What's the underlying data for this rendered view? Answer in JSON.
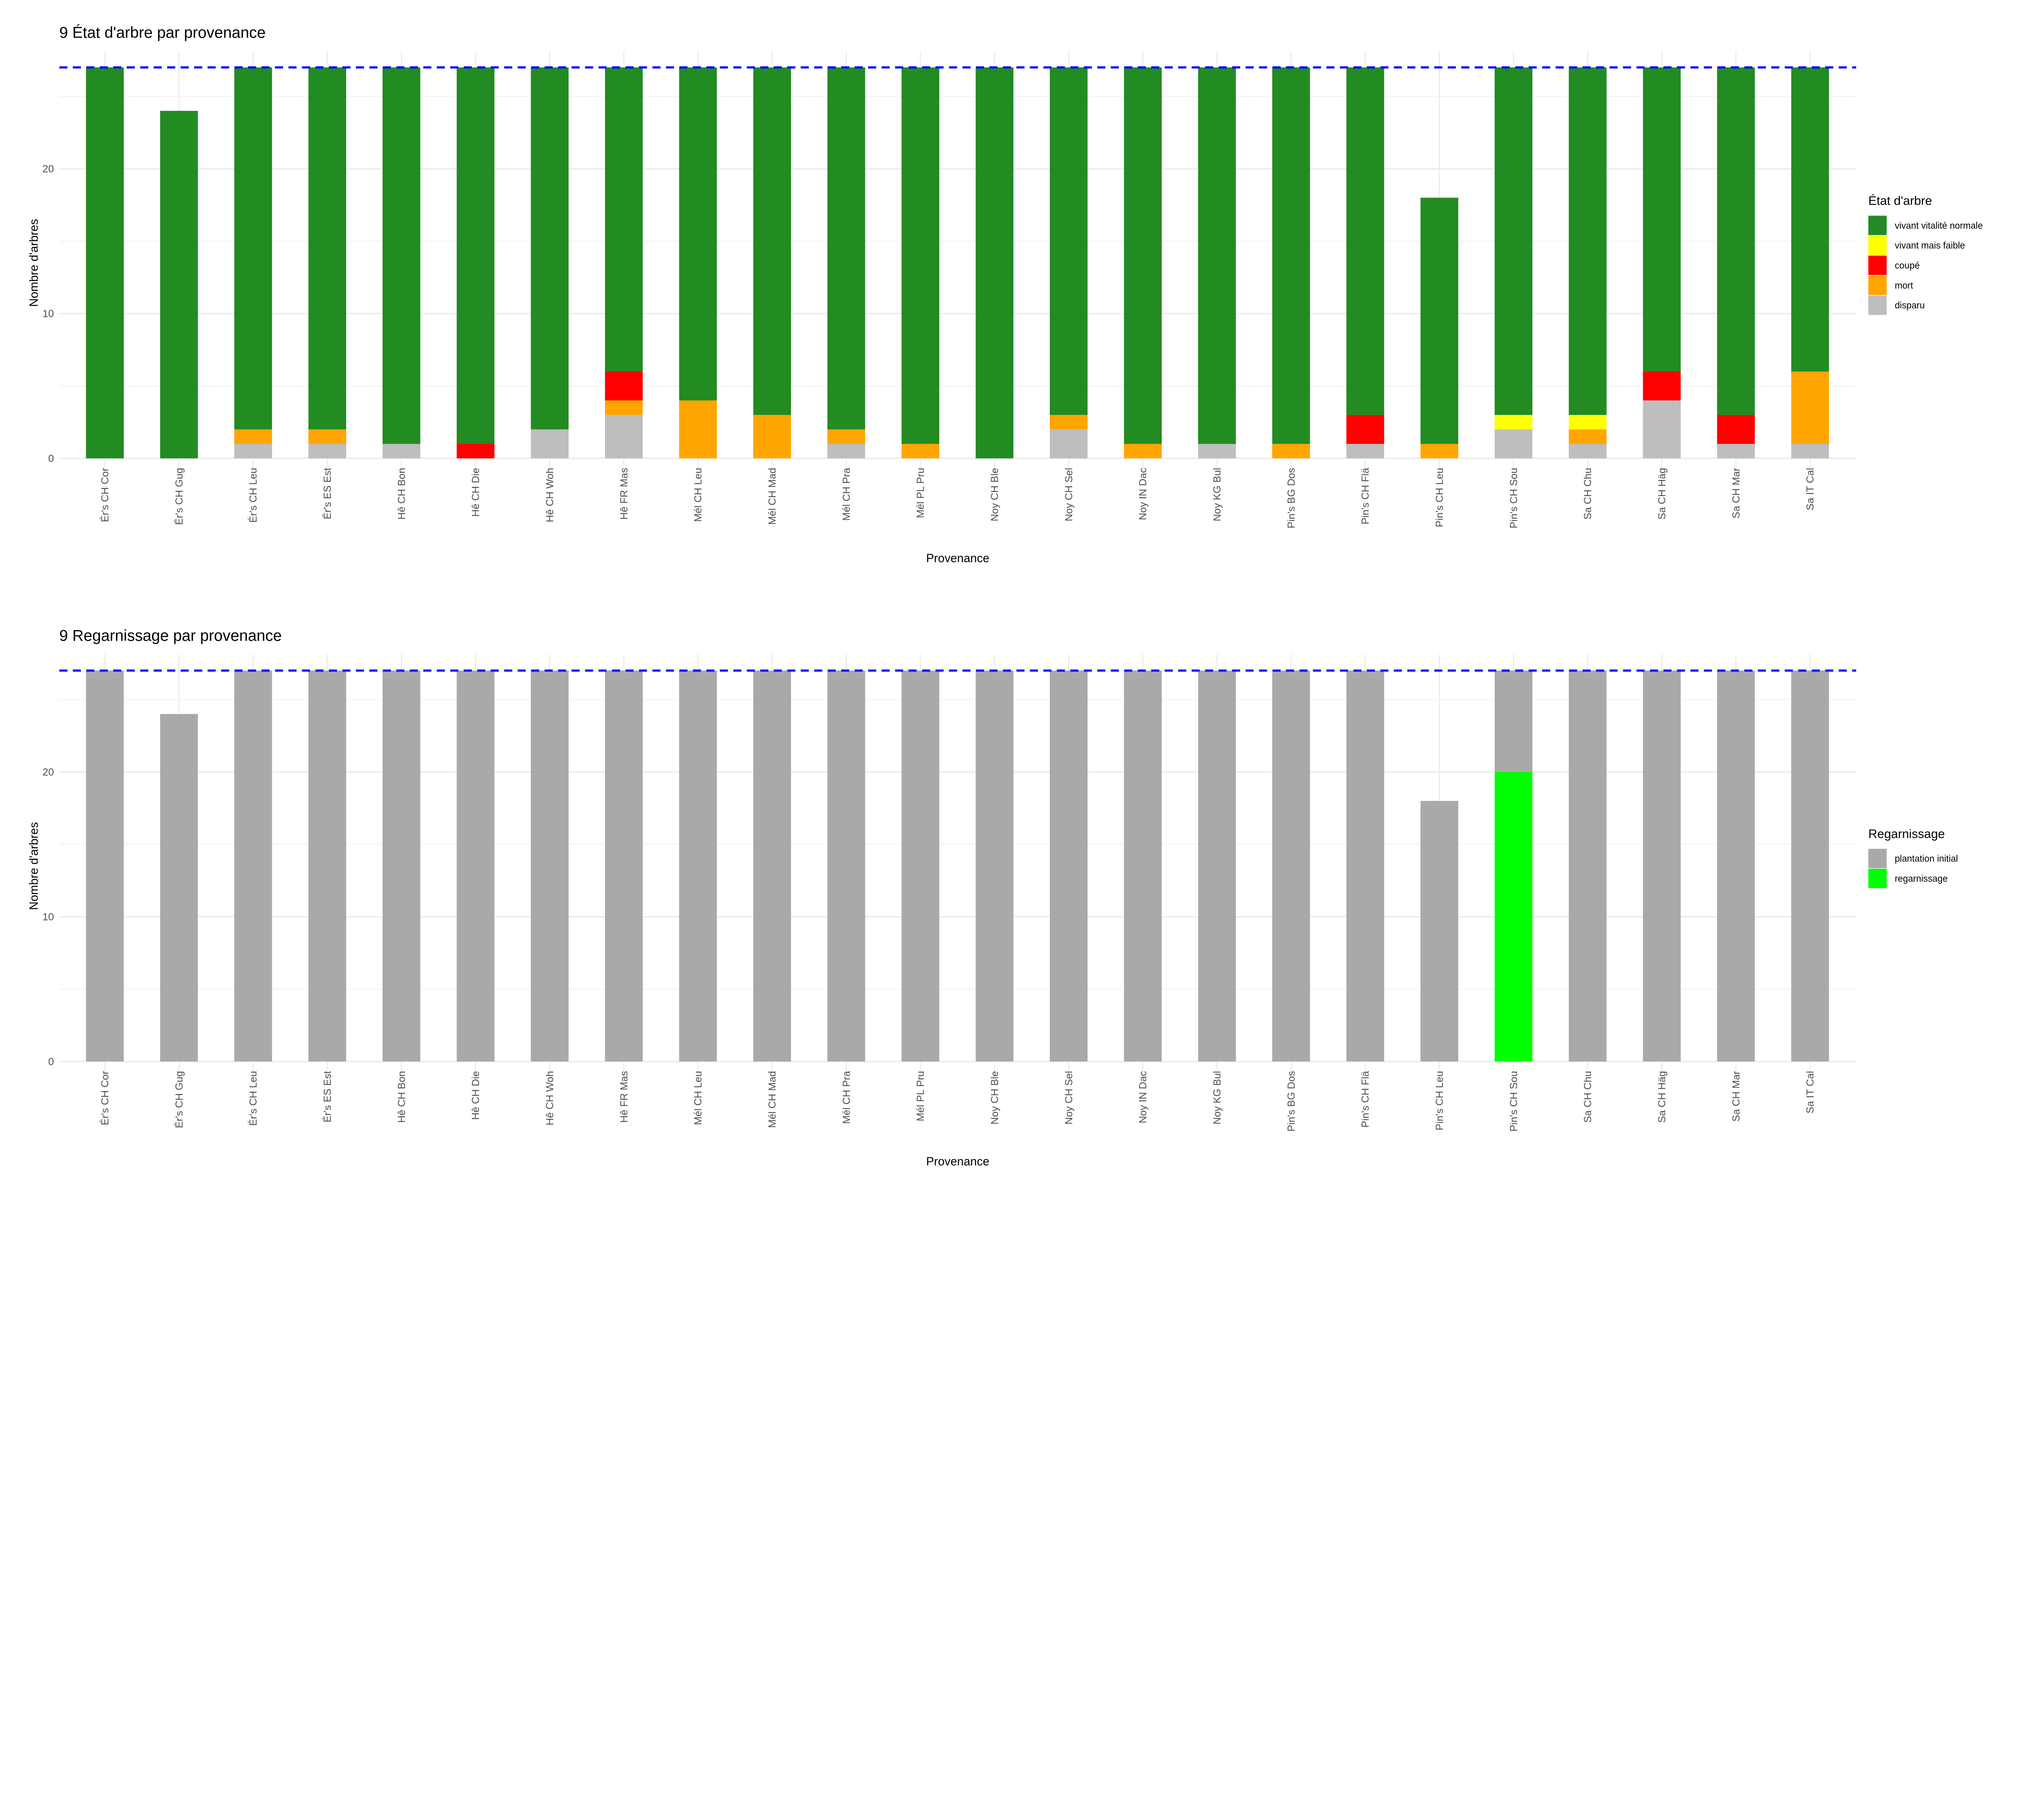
{
  "colors": {
    "vivant vitalité normale": "#228B22",
    "vivant mais faible": "#FFFF00",
    "coupé": "#FF0000",
    "mort": "#FFA500",
    "disparu": "#BEBEBE",
    "plantation initial": "#A9A9A9",
    "regarnissage": "#00FF00",
    "reference_line": "#0000FF"
  },
  "chart_data": [
    {
      "type": "bar",
      "stacked": true,
      "title": "9 État d'arbre par provenance",
      "xlabel": "Provenance",
      "ylabel": "Nombre d'arbres",
      "ylim": [
        0,
        27
      ],
      "yticks": [
        0,
        10,
        20
      ],
      "reference_line": 27,
      "legend_title": "État d'arbre",
      "legend_position": "right",
      "categories": [
        "Ér's CH Cor",
        "Ér's CH Gug",
        "Ér's CH Leu",
        "Ér's ES Est",
        "Hê CH Bon",
        "Hê CH Die",
        "Hê CH Woh",
        "Hê FR Mas",
        "Mél CH Leu",
        "Mél CH Mad",
        "Mél CH Pra",
        "Mél PL Pru",
        "Noy CH Ble",
        "Noy CH Sel",
        "Noy IN Dac",
        "Noy KG Bul",
        "Pin's BG Dos",
        "Pin's CH Flä",
        "Pin's CH Leu",
        "Pin's CH Sou",
        "Sa CH Chu",
        "Sa CH Häg",
        "Sa CH Mar",
        "Sa IT Cal"
      ],
      "series": [
        {
          "name": "disparu",
          "values": [
            0,
            0,
            1,
            1,
            1,
            0,
            2,
            3,
            0,
            0,
            1,
            0,
            0,
            2,
            0,
            1,
            0,
            1,
            0,
            2,
            1,
            4,
            1,
            1
          ]
        },
        {
          "name": "mort",
          "values": [
            0,
            0,
            1,
            1,
            0,
            0,
            0,
            1,
            4,
            3,
            1,
            1,
            0,
            1,
            1,
            0,
            1,
            0,
            1,
            0,
            1,
            0,
            0,
            5
          ]
        },
        {
          "name": "coupé",
          "values": [
            0,
            0,
            0,
            0,
            0,
            1,
            0,
            2,
            0,
            0,
            0,
            0,
            0,
            0,
            0,
            0,
            0,
            2,
            0,
            0,
            0,
            2,
            2,
            0
          ]
        },
        {
          "name": "vivant mais faible",
          "values": [
            0,
            0,
            0,
            0,
            0,
            0,
            0,
            0,
            0,
            0,
            0,
            0,
            0,
            0,
            0,
            0,
            0,
            0,
            0,
            1,
            1,
            0,
            0,
            0
          ]
        },
        {
          "name": "vivant vitalité normale",
          "values": [
            27,
            24,
            25,
            25,
            26,
            26,
            25,
            21,
            23,
            24,
            25,
            26,
            27,
            24,
            26,
            26,
            26,
            24,
            17,
            24,
            24,
            21,
            24,
            21
          ]
        }
      ],
      "legend_order": [
        "vivant vitalité normale",
        "vivant mais faible",
        "coupé",
        "mort",
        "disparu"
      ]
    },
    {
      "type": "bar",
      "stacked": true,
      "title": "9 Regarnissage par provenance",
      "xlabel": "Provenance",
      "ylabel": "Nombre d'arbres",
      "ylim": [
        0,
        27
      ],
      "yticks": [
        0,
        10,
        20
      ],
      "reference_line": 27,
      "legend_title": "Regarnissage",
      "legend_position": "right",
      "categories": [
        "Ér's CH Cor",
        "Ér's CH Gug",
        "Ér's CH Leu",
        "Ér's ES Est",
        "Hê CH Bon",
        "Hê CH Die",
        "Hê CH Woh",
        "Hê FR Mas",
        "Mél CH Leu",
        "Mél CH Mad",
        "Mél CH Pra",
        "Mél PL Pru",
        "Noy CH Ble",
        "Noy CH Sel",
        "Noy IN Dac",
        "Noy KG Bul",
        "Pin's BG Dos",
        "Pin's CH Flä",
        "Pin's CH Leu",
        "Pin's CH Sou",
        "Sa CH Chu",
        "Sa CH Häg",
        "Sa CH Mar",
        "Sa IT Cal"
      ],
      "series": [
        {
          "name": "regarnissage",
          "values": [
            0,
            0,
            0,
            0,
            0,
            0,
            0,
            0,
            0,
            0,
            0,
            0,
            0,
            0,
            0,
            0,
            0,
            0,
            0,
            20,
            0,
            0,
            0,
            0
          ]
        },
        {
          "name": "plantation initial",
          "values": [
            27,
            24,
            27,
            27,
            27,
            27,
            27,
            27,
            27,
            27,
            27,
            27,
            27,
            27,
            27,
            27,
            27,
            27,
            18,
            7,
            27,
            27,
            27,
            27
          ]
        }
      ],
      "legend_order": [
        "plantation initial",
        "regarnissage"
      ]
    }
  ]
}
